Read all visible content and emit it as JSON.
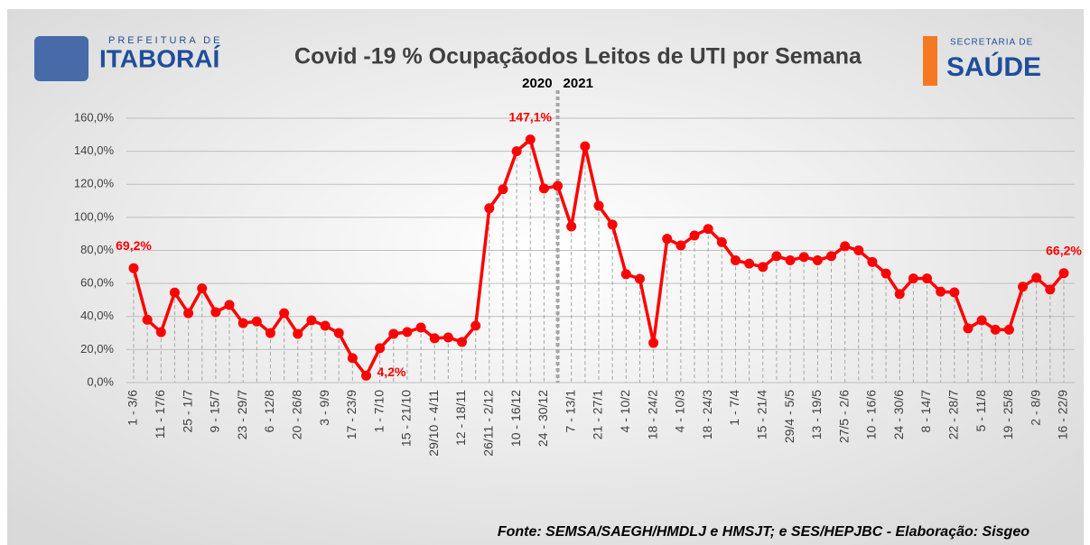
{
  "chart_data": {
    "type": "line",
    "title": "Covid -19 % Ocupaçãodos Leitos de UTI por Semana",
    "annotations": [
      "2020",
      "2021"
    ],
    "logos": {
      "left_small": "PREFEITURA DE",
      "left_big": "ITABORAÍ",
      "right_small": "SECRETARIA DE",
      "right_big": "SAÚDE"
    },
    "source": "Fonte: SEMSA/SAEGH/HMDLJ e HMSJT; e SES/HEPJBC - Elaboração: Sisgeo",
    "categories": [
      "1 - 3/6",
      null,
      "11 - 17/6",
      null,
      "25 - 1/7",
      null,
      "9 - 15/7",
      null,
      "23 - 29/7",
      null,
      "6 - 12/8",
      null,
      "20 - 26/8",
      null,
      "3 - 9/9",
      null,
      "17 - 23/9",
      null,
      "1 - 7/10",
      null,
      "15 - 21/10",
      null,
      "29/10 - 4/11",
      null,
      "12 - 18/11",
      null,
      "26/11 - 2/12",
      null,
      "10 - 16/12",
      null,
      "24 - 30/12",
      null,
      "7 - 13/1",
      null,
      "21 - 27/1",
      null,
      "4 - 10/2",
      null,
      "18 - 24/2",
      null,
      "4 - 10/3",
      null,
      "18 - 24/3",
      null,
      "1 - 7/4",
      null,
      "15 - 21/4",
      null,
      "29/4 - 5/5",
      null,
      "13 - 19/5",
      null,
      "27/5 - 2/6",
      null,
      "10 - 16/6",
      null,
      "24 - 30/6",
      null,
      "8 - 14/7",
      null,
      "22 - 28/7",
      null,
      "5 - 11/8",
      null,
      "19 - 25/8",
      null,
      "2 - 8/9",
      null,
      "16 - 22/9"
    ],
    "series": [
      {
        "name": "Ocupação",
        "color": "#ff0000",
        "values": [
          69.2,
          38,
          30.5,
          54.5,
          42,
          57,
          42.6,
          47,
          36,
          37,
          30,
          42,
          29.5,
          37.7,
          34.4,
          30,
          14.8,
          4.2,
          20.8,
          29.5,
          30.6,
          33.3,
          26.8,
          27.3,
          24.6,
          34.4,
          105.5,
          117,
          140,
          147.1,
          117.5,
          119,
          94.5,
          143,
          107,
          95.6,
          65.6,
          62.8,
          24,
          87,
          83,
          89,
          93,
          85,
          74,
          72,
          70,
          76.5,
          74,
          76,
          74,
          76.5,
          82.5,
          80,
          73,
          66,
          53.6,
          63,
          63,
          55,
          54.6,
          32.8,
          37.7,
          32,
          32,
          58,
          63.4,
          56.3,
          66.2
        ],
        "value_labels": [
          "69,2%",
          null,
          null,
          null,
          null,
          null,
          null,
          null,
          null,
          null,
          null,
          null,
          null,
          null,
          null,
          null,
          null,
          "4,2%",
          null,
          null,
          null,
          null,
          null,
          null,
          null,
          null,
          null,
          null,
          null,
          "147,1%",
          null,
          null,
          null,
          null,
          null,
          null,
          null,
          null,
          null,
          null,
          null,
          null,
          null,
          null,
          null,
          null,
          null,
          null,
          null,
          null,
          null,
          null,
          null,
          null,
          null,
          null,
          null,
          null,
          null,
          null,
          null,
          null,
          null,
          null,
          null,
          null,
          null,
          null,
          "66,2%"
        ]
      }
    ],
    "ylim": [
      0,
      160
    ],
    "yticks": [
      {
        "value": 0,
        "label": "0,0%"
      },
      {
        "value": 20,
        "label": "20,0%"
      },
      {
        "value": 40,
        "label": "40,0%"
      },
      {
        "value": 60,
        "label": "60,0%"
      },
      {
        "value": 80,
        "label": "80,0%"
      },
      {
        "value": 100,
        "label": "100,0%"
      },
      {
        "value": 120,
        "label": "120,0%"
      },
      {
        "value": 140,
        "label": "140,0%"
      },
      {
        "value": 160,
        "label": "160,0%"
      }
    ],
    "grid": true
  }
}
